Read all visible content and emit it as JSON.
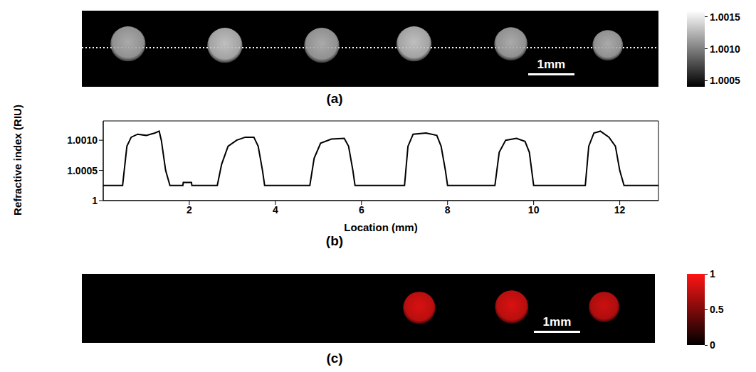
{
  "chart_data": [
    {
      "type": "image",
      "panel": "(a)",
      "xlim": [
        0,
        12.5
      ],
      "ylim": [
        0,
        1.65
      ],
      "spots": [
        {
          "x": 1.0,
          "y": 0.72,
          "r": 0.38,
          "value": 1.0012
        },
        {
          "x": 3.1,
          "y": 0.75,
          "r": 0.38,
          "value": 1.0013
        },
        {
          "x": 5.2,
          "y": 0.75,
          "r": 0.38,
          "value": 1.0012
        },
        {
          "x": 7.2,
          "y": 0.72,
          "r": 0.38,
          "value": 1.0013
        },
        {
          "x": 9.3,
          "y": 0.72,
          "r": 0.36,
          "value": 1.0012
        },
        {
          "x": 11.4,
          "y": 0.75,
          "r": 0.33,
          "value": 1.0012
        }
      ],
      "profile_line_y": 0.8,
      "scale_bar": {
        "length": 1,
        "label": "1mm"
      },
      "colorbar": {
        "range": [
          1.0004,
          1.0016
        ],
        "ticks": [
          1.0005,
          {
            "value": 1.001,
            "label": "1.0010"
          },
          1.0015
        ]
      }
    },
    {
      "type": "line",
      "panel": "(b)",
      "x_label": "Location (mm)",
      "y_label": "Refractive index (RIU)",
      "color": "#000000",
      "x": [
        0,
        0.45,
        0.55,
        0.65,
        0.8,
        1.0,
        1.2,
        1.3,
        1.35,
        1.45,
        1.55,
        1.85,
        1.86,
        2.05,
        2.06,
        2.65,
        2.75,
        2.9,
        3.1,
        3.3,
        3.5,
        3.6,
        3.7,
        3.75,
        4.8,
        4.9,
        5.05,
        5.3,
        5.6,
        5.7,
        5.8,
        5.85,
        7.0,
        7.08,
        7.2,
        7.5,
        7.75,
        7.85,
        7.95,
        8.0,
        9.1,
        9.2,
        9.35,
        9.6,
        9.8,
        9.9,
        10.0,
        11.2,
        11.28,
        11.4,
        11.55,
        11.75,
        11.9,
        12.0,
        12.1,
        12.9
      ],
      "values": [
        1.00025,
        1.00025,
        1.0009,
        1.00105,
        1.0011,
        1.00108,
        1.00112,
        1.00115,
        1.001,
        1.0005,
        1.00025,
        1.00025,
        1.0003,
        1.0003,
        1.00025,
        1.00025,
        1.0006,
        1.0009,
        1.001,
        1.00105,
        1.00105,
        1.0009,
        1.0005,
        1.00025,
        1.00025,
        1.0007,
        1.00095,
        1.00102,
        1.00103,
        1.0009,
        1.0005,
        1.00025,
        1.00025,
        1.0009,
        1.0011,
        1.00112,
        1.00108,
        1.0009,
        1.0005,
        1.00025,
        1.00025,
        1.0008,
        1.001,
        1.00103,
        1.00098,
        1.0008,
        1.00025,
        1.00025,
        1.0009,
        1.00112,
        1.00115,
        1.00105,
        1.0009,
        1.0005,
        1.00025,
        1.00025
      ],
      "xlim": [
        0,
        12.9
      ],
      "ylim": [
        1,
        1.00132
      ],
      "xticks": [
        2,
        4,
        6,
        8,
        10,
        12
      ],
      "yticks": [
        1,
        1.0005,
        {
          "value": 1.001,
          "label": "1.0010"
        }
      ],
      "grid": false
    },
    {
      "type": "image",
      "panel": "(c)",
      "xlim": [
        0,
        12.4
      ],
      "ylim": [
        0,
        1.5
      ],
      "spots": [
        {
          "x": 7.3,
          "y": 0.74,
          "r": 0.35,
          "value": 0.85
        },
        {
          "x": 9.3,
          "y": 0.72,
          "r": 0.36,
          "value": 0.85
        },
        {
          "x": 11.3,
          "y": 0.72,
          "r": 0.33,
          "value": 0.8
        }
      ],
      "scale_bar": {
        "length": 1,
        "label": "1mm"
      },
      "colorbar": {
        "range": [
          0,
          1
        ],
        "ticks": [
          0,
          0.5,
          1
        ]
      }
    }
  ]
}
